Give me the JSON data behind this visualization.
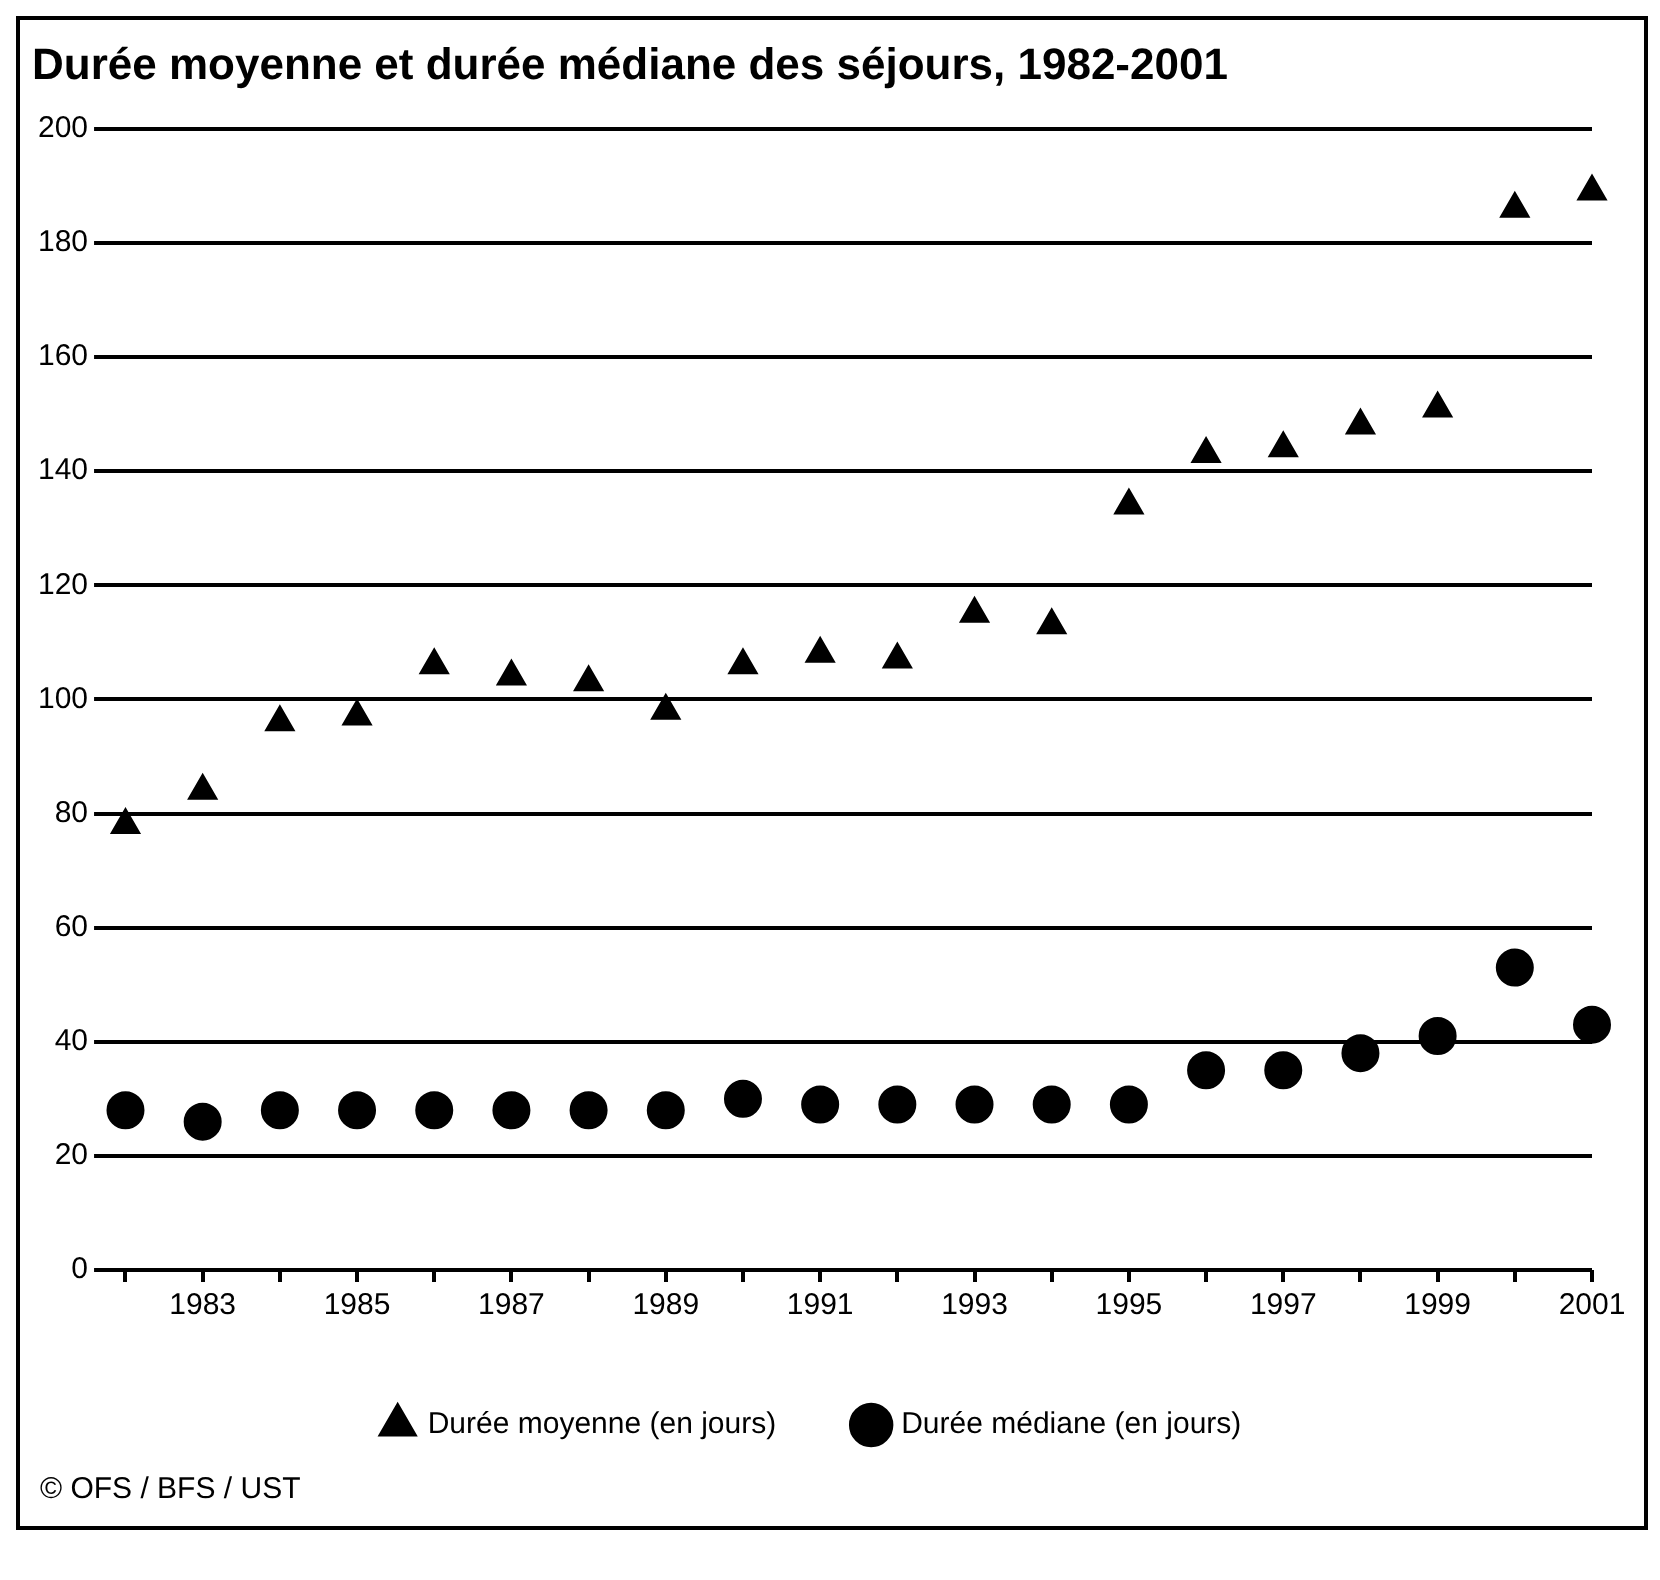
{
  "chart_data": {
    "type": "scatter",
    "title": "Durée moyenne et durée médiane des séjours, 1982-2001",
    "x": [
      1982,
      1983,
      1984,
      1985,
      1986,
      1987,
      1988,
      1989,
      1990,
      1991,
      1992,
      1993,
      1994,
      1995,
      1996,
      1997,
      1998,
      1999,
      2000,
      2001
    ],
    "series": [
      {
        "name": "Durée moyenne (en jours)",
        "color": "#000000",
        "marker": "triangle",
        "values": [
          78,
          84,
          96,
          97,
          106,
          104,
          103,
          98,
          106,
          108,
          107,
          115,
          113,
          134,
          143,
          144,
          148,
          151,
          186,
          189
        ]
      },
      {
        "name": "Durée médiane (en jours)",
        "color": "#000000",
        "marker": "circle",
        "values": [
          28,
          26,
          28,
          28,
          28,
          28,
          28,
          28,
          30,
          29,
          29,
          29,
          29,
          29,
          35,
          35,
          38,
          41,
          53,
          43
        ]
      }
    ],
    "xlim": [
      1981.8,
      2001
    ],
    "xticks": [
      {
        "value": 1982,
        "label": null
      },
      1983,
      {
        "value": 1984,
        "label": null
      },
      1985,
      {
        "value": 1986,
        "label": null
      },
      1987,
      {
        "value": 1988,
        "label": null
      },
      1989,
      {
        "value": 1990,
        "label": null
      },
      1991,
      {
        "value": 1992,
        "label": null
      },
      1993,
      {
        "value": 1994,
        "label": null
      },
      1995,
      {
        "value": 1996,
        "label": null
      },
      1997,
      {
        "value": 1998,
        "label": null
      },
      1999,
      {
        "value": 2000,
        "label": null
      },
      2001
    ],
    "ylim": [
      0,
      200
    ],
    "yticks": [
      0,
      20,
      40,
      60,
      80,
      100,
      120,
      140,
      160,
      180,
      200
    ],
    "grid": "y",
    "legend": "bottom",
    "annotations": [
      "© OFS / BFS / UST"
    ]
  }
}
